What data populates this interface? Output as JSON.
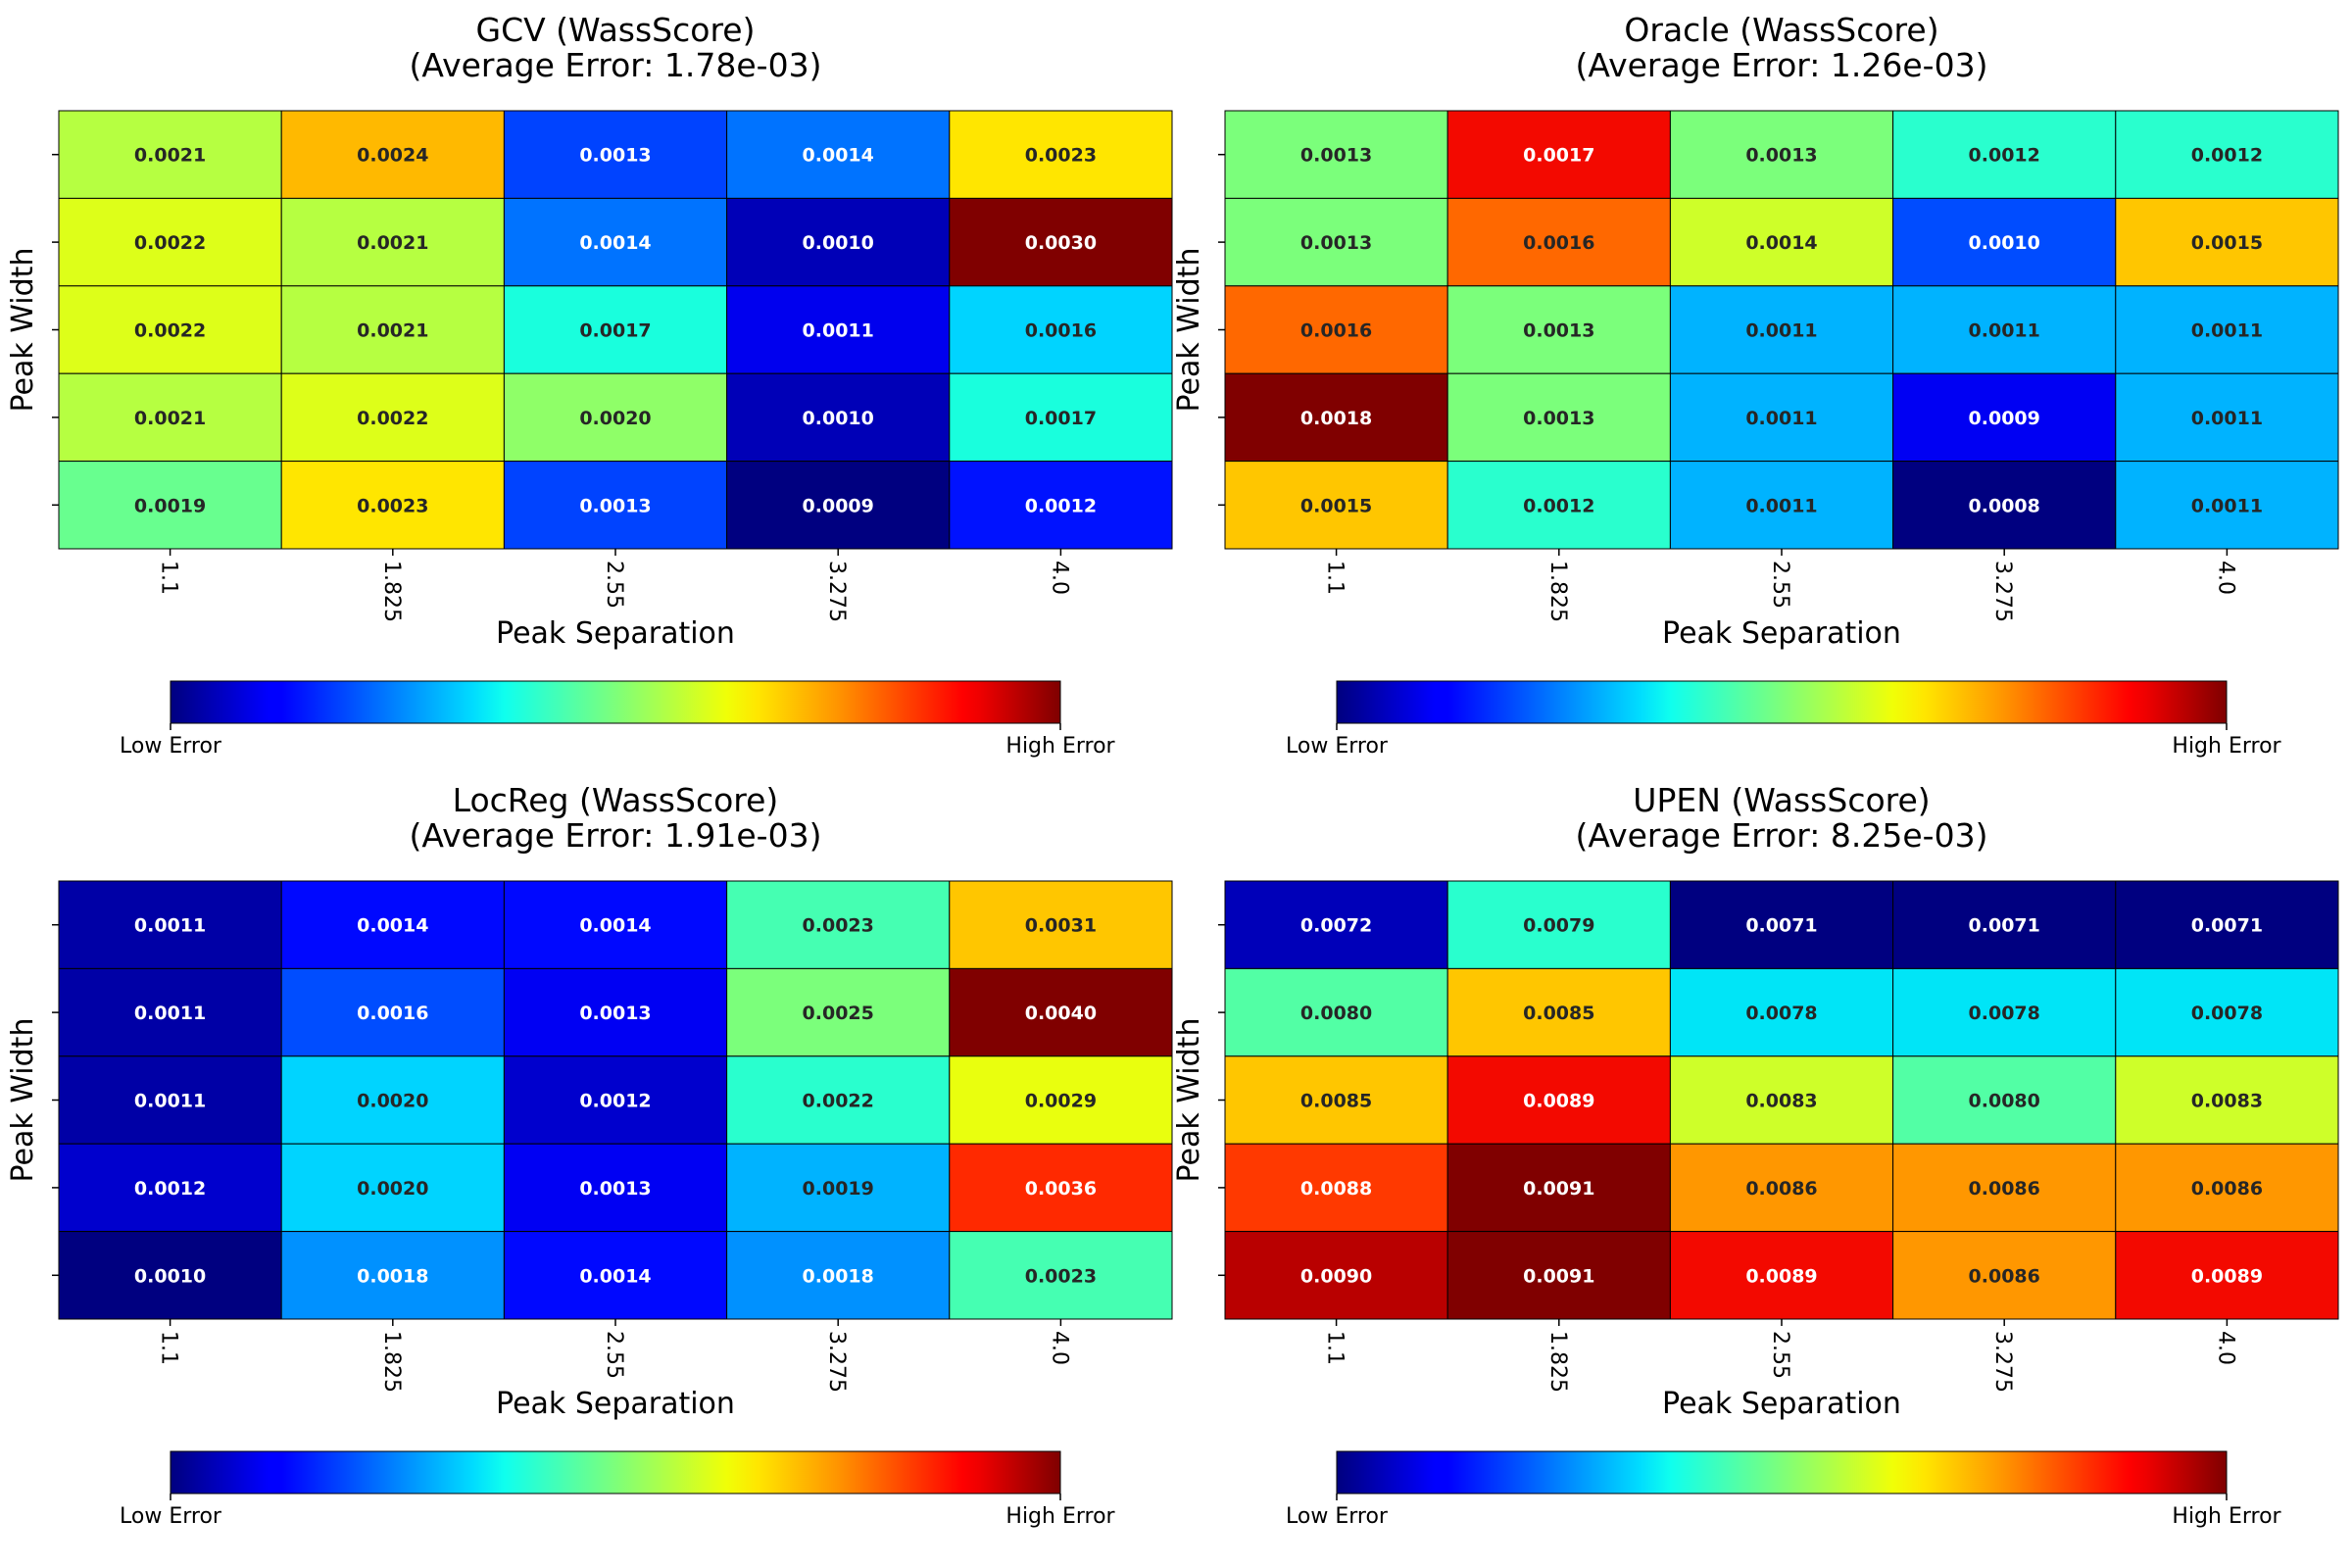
{
  "chart_data": [
    {
      "type": "heatmap",
      "title_line1": "GCV (WassScore)",
      "title_line2": "(Average Error: 1.78e-03)",
      "xlabel": "Peak Separation",
      "ylabel": "Peak Width",
      "x_ticks": [
        "1.1",
        "1.825",
        "2.55",
        "3.275",
        "4.0"
      ],
      "values": [
        [
          0.0021,
          0.0024,
          0.0013,
          0.0014,
          0.0023
        ],
        [
          0.0022,
          0.0021,
          0.0014,
          0.001,
          0.003
        ],
        [
          0.0022,
          0.0021,
          0.0017,
          0.0011,
          0.0016
        ],
        [
          0.0021,
          0.0022,
          0.002,
          0.001,
          0.0017
        ],
        [
          0.0019,
          0.0023,
          0.0013,
          0.0009,
          0.0012
        ]
      ],
      "colormap": "jet",
      "colorbar": {
        "low_label": "Low Error",
        "high_label": "High Error"
      }
    },
    {
      "type": "heatmap",
      "title_line1": "Oracle (WassScore)",
      "title_line2": "(Average Error: 1.26e-03)",
      "xlabel": "Peak Separation",
      "ylabel": "Peak Width",
      "x_ticks": [
        "1.1",
        "1.825",
        "2.55",
        "3.275",
        "4.0"
      ],
      "values": [
        [
          0.0013,
          0.0017,
          0.0013,
          0.0012,
          0.0012
        ],
        [
          0.0013,
          0.0016,
          0.0014,
          0.001,
          0.0015
        ],
        [
          0.0016,
          0.0013,
          0.0011,
          0.0011,
          0.0011
        ],
        [
          0.0018,
          0.0013,
          0.0011,
          0.0009,
          0.0011
        ],
        [
          0.0015,
          0.0012,
          0.0011,
          0.0008,
          0.0011
        ]
      ],
      "colormap": "jet",
      "colorbar": {
        "low_label": "Low Error",
        "high_label": "High Error"
      }
    },
    {
      "type": "heatmap",
      "title_line1": "LocReg (WassScore)",
      "title_line2": "(Average Error: 1.91e-03)",
      "xlabel": "Peak Separation",
      "ylabel": "Peak Width",
      "x_ticks": [
        "1.1",
        "1.825",
        "2.55",
        "3.275",
        "4.0"
      ],
      "values": [
        [
          0.0011,
          0.0014,
          0.0014,
          0.0023,
          0.0031
        ],
        [
          0.0011,
          0.0016,
          0.0013,
          0.0025,
          0.004
        ],
        [
          0.0011,
          0.002,
          0.0012,
          0.0022,
          0.0029
        ],
        [
          0.0012,
          0.002,
          0.0013,
          0.0019,
          0.0036
        ],
        [
          0.001,
          0.0018,
          0.0014,
          0.0018,
          0.0023
        ]
      ],
      "colormap": "jet",
      "colorbar": {
        "low_label": "Low Error",
        "high_label": "High Error"
      }
    },
    {
      "type": "heatmap",
      "title_line1": "UPEN (WassScore)",
      "title_line2": "(Average Error: 8.25e-03)",
      "xlabel": "Peak Separation",
      "ylabel": "Peak Width",
      "x_ticks": [
        "1.1",
        "1.825",
        "2.55",
        "3.275",
        "4.0"
      ],
      "values": [
        [
          0.0072,
          0.0079,
          0.0071,
          0.0071,
          0.0071
        ],
        [
          0.008,
          0.0085,
          0.0078,
          0.0078,
          0.0078
        ],
        [
          0.0085,
          0.0089,
          0.0083,
          0.008,
          0.0083
        ],
        [
          0.0088,
          0.0091,
          0.0086,
          0.0086,
          0.0086
        ],
        [
          0.009,
          0.0091,
          0.0089,
          0.0086,
          0.0089
        ]
      ],
      "colormap": "jet",
      "colorbar": {
        "low_label": "Low Error",
        "high_label": "High Error"
      }
    }
  ]
}
